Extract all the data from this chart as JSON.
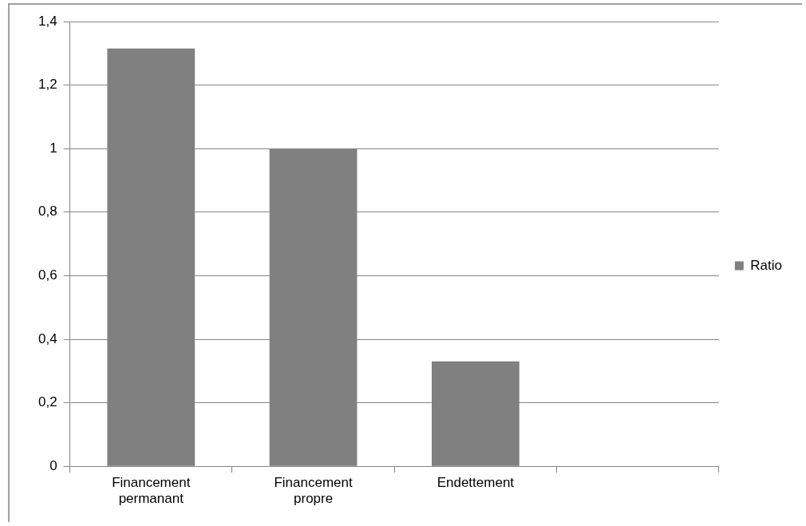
{
  "chart_data": {
    "type": "bar",
    "categories": [
      "Financement permanant",
      "Financement propre",
      "Endettement",
      null
    ],
    "series": [
      {
        "name": "Ratio",
        "color": "#808080",
        "values": [
          1.315,
          1.0,
          0.33,
          null
        ]
      }
    ],
    "ylim": [
      0,
      1.4
    ],
    "yticks": [
      0,
      {
        "value": 0.2,
        "label": "0,2"
      },
      {
        "value": 0.4,
        "label": "0,4"
      },
      {
        "value": 0.6,
        "label": "0,6"
      },
      {
        "value": 0.8,
        "label": "0,8"
      },
      1,
      {
        "value": 1.2,
        "label": "1,2"
      },
      {
        "value": 1.4,
        "label": "1,4"
      }
    ],
    "grid": "y",
    "legend": "right"
  }
}
